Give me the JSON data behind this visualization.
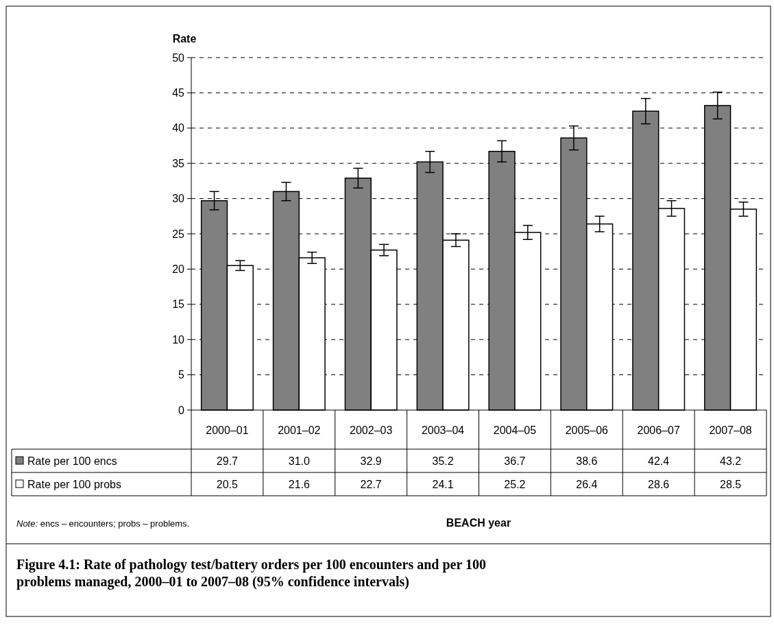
{
  "chart_data": {
    "type": "bar",
    "title": "Figure 4.1: Rate of pathology test/battery orders per 100 encounters and per 100 problems managed, 2000–01 to 2007–08 (95% confidence intervals)",
    "ylabel": "Rate",
    "categories": [
      "2000–01",
      "2001–02",
      "2002–03",
      "2003–04",
      "2004–05",
      "2005–06",
      "2006–07",
      "2007–08"
    ],
    "series": [
      {
        "name": "Rate per 100 encs",
        "color": "#808080",
        "values": [
          29.7,
          31.0,
          32.9,
          35.2,
          36.7,
          38.6,
          42.4,
          43.2
        ],
        "value_labels": [
          "29.7",
          "31.0",
          "32.9",
          "35.2",
          "36.7",
          "38.6",
          "42.4",
          "43.2"
        ],
        "errors": [
          1.3,
          1.3,
          1.4,
          1.5,
          1.5,
          1.7,
          1.8,
          1.9
        ]
      },
      {
        "name": "Rate per 100 probs",
        "color": "#ffffff",
        "values": [
          20.5,
          21.6,
          22.7,
          24.1,
          25.2,
          26.4,
          28.6,
          28.5
        ],
        "value_labels": [
          "20.5",
          "21.6",
          "22.7",
          "24.1",
          "25.2",
          "26.4",
          "28.6",
          "28.5"
        ],
        "errors": [
          0.7,
          0.8,
          0.8,
          0.9,
          1.0,
          1.1,
          1.1,
          1.0
        ]
      }
    ],
    "ylim": [
      0,
      50
    ],
    "yticks": [
      0,
      5,
      10,
      15,
      20,
      25,
      30,
      35,
      40,
      45,
      50
    ],
    "grid": "y",
    "legend": "bottom",
    "annotations": [
      "Note: encs – encounters; probs – problems.",
      "BEACH year"
    ]
  }
}
